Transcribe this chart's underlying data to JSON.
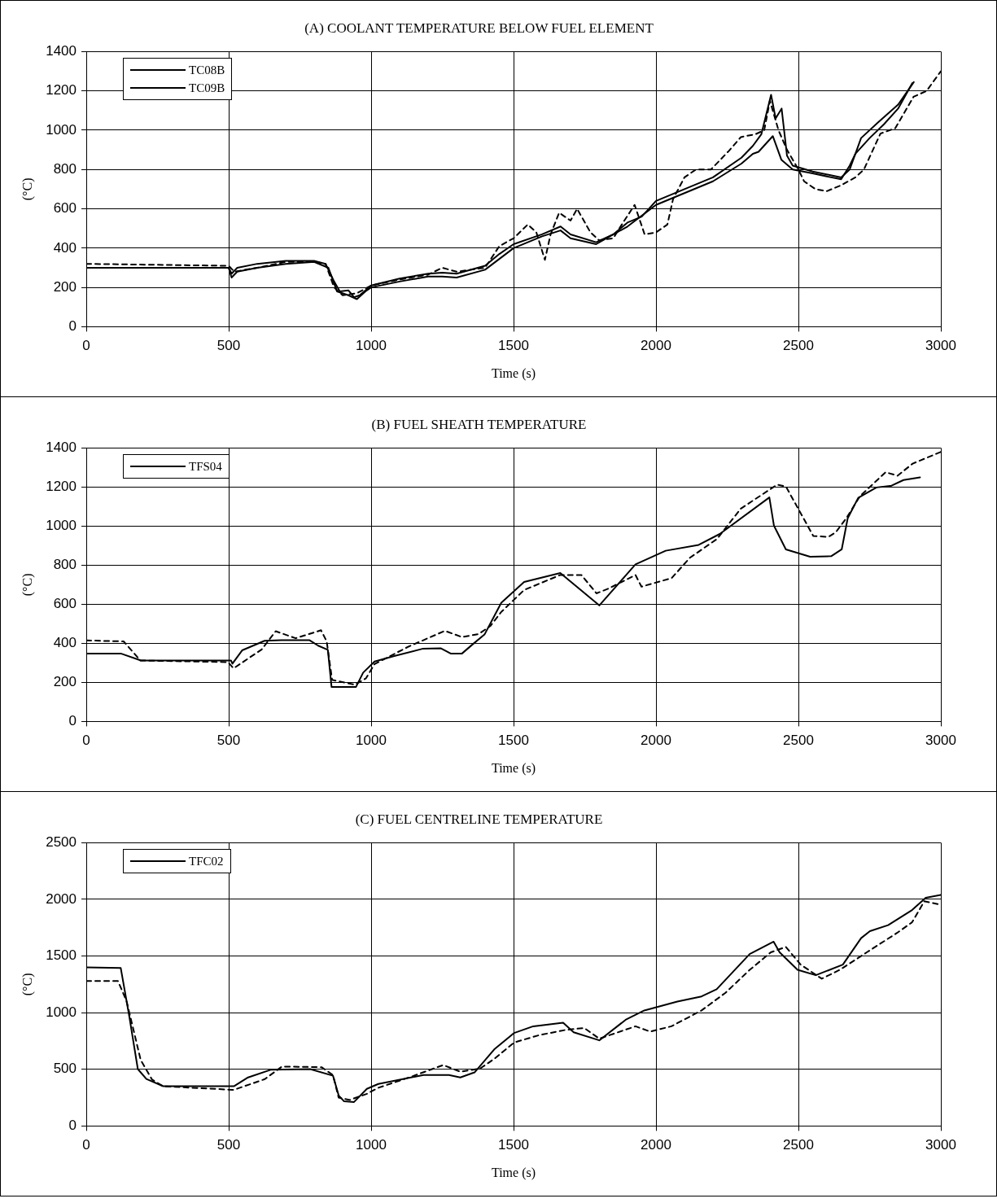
{
  "chart_data": [
    {
      "type": "line",
      "title": "(A) COOLANT TEMPERATURE BELOW FUEL ELEMENT",
      "xlabel": "Time (s)",
      "ylabel": "(°C)",
      "xlim": [
        0,
        3000
      ],
      "xticks": [
        0,
        500,
        1000,
        1500,
        2000,
        2500,
        3000
      ],
      "ylim": [
        0,
        1400
      ],
      "yticks": [
        0,
        200,
        400,
        600,
        800,
        1000,
        1200,
        1400
      ],
      "grid": true,
      "legend": "top left",
      "marker": "none",
      "series": [
        {
          "name": "TC08B",
          "color": "#000000",
          "line_style": "solid",
          "x": [
            0,
            500,
            510,
            530,
            600,
            700,
            800,
            850,
            880,
            920,
            950,
            980,
            1000,
            1100,
            1200,
            1250,
            1300,
            1400,
            1500,
            1600,
            1665,
            1700,
            1790,
            1900,
            2000,
            2100,
            2200,
            2300,
            2340,
            2360,
            2410,
            2440,
            2480,
            2550,
            2650,
            2680,
            2700,
            2750,
            2800,
            2850,
            2900
          ],
          "values": [
            300,
            300,
            250,
            280,
            300,
            320,
            330,
            300,
            180,
            160,
            140,
            180,
            200,
            230,
            255,
            255,
            250,
            290,
            400,
            460,
            490,
            450,
            420,
            510,
            620,
            680,
            740,
            830,
            880,
            890,
            970,
            850,
            800,
            780,
            750,
            820,
            880,
            960,
            1030,
            1110,
            1240
          ]
        },
        {
          "name": "TC09B",
          "color": "#000000",
          "line_style": "solid",
          "x": [
            0,
            500,
            510,
            530,
            600,
            700,
            800,
            840,
            870,
            890,
            920,
            940,
            960,
            1000,
            1100,
            1200,
            1250,
            1300,
            1400,
            1450,
            1500,
            1600,
            1665,
            1700,
            1790,
            1850,
            1900,
            1950,
            2000,
            2100,
            2200,
            2300,
            2340,
            2370,
            2404,
            2420,
            2441,
            2460,
            2480,
            2550,
            2650,
            2680,
            2720,
            2780,
            2850,
            2905
          ],
          "values": [
            300,
            300,
            270,
            300,
            320,
            335,
            335,
            320,
            230,
            180,
            185,
            150,
            160,
            210,
            245,
            270,
            275,
            270,
            310,
            370,
            420,
            470,
            510,
            470,
            430,
            470,
            530,
            560,
            640,
            700,
            760,
            860,
            920,
            980,
            1180,
            1060,
            1110,
            870,
            820,
            790,
            760,
            800,
            960,
            1040,
            1130,
            1245
          ]
        },
        {
          "color": "#000000",
          "line_style": "dashed",
          "x": [
            0,
            500,
            520,
            600,
            700,
            800,
            840,
            870,
            900,
            950,
            1000,
            1100,
            1200,
            1250,
            1300,
            1400,
            1450,
            1500,
            1550,
            1580,
            1610,
            1630,
            1660,
            1700,
            1723,
            1770,
            1800,
            1850,
            1880,
            1925,
            1960,
            2000,
            2040,
            2060,
            2100,
            2140,
            2193,
            2256,
            2298,
            2350,
            2380,
            2400,
            2430,
            2460,
            2500,
            2520,
            2560,
            2600,
            2650,
            2700,
            2730,
            2788,
            2840,
            2904,
            2950,
            3000
          ],
          "values": [
            320,
            310,
            280,
            300,
            330,
            330,
            320,
            200,
            160,
            170,
            210,
            240,
            265,
            300,
            280,
            300,
            410,
            450,
            520,
            480,
            340,
            470,
            580,
            540,
            600,
            480,
            440,
            450,
            520,
            620,
            470,
            480,
            520,
            650,
            760,
            800,
            800,
            895,
            965,
            980,
            1000,
            1150,
            1000,
            900,
            800,
            740,
            700,
            690,
            720,
            760,
            800,
            983,
            1010,
            1170,
            1200,
            1300
          ]
        }
      ]
    },
    {
      "type": "line",
      "title": "(B) FUEL SHEATH TEMPERATURE",
      "xlabel": "Time (s)",
      "ylabel": "(°C)",
      "xlim": [
        0,
        3000
      ],
      "xticks": [
        0,
        500,
        1000,
        1500,
        2000,
        2500,
        3000
      ],
      "ylim": [
        0,
        1400
      ],
      "yticks": [
        0,
        200,
        400,
        600,
        800,
        1000,
        1200,
        1400
      ],
      "grid": true,
      "legend": "top left",
      "marker": "none",
      "series": [
        {
          "name": "TFS04",
          "color": "#000000",
          "line_style": "solid",
          "x": [
            0,
            121,
            192,
            508,
            513,
            547,
            626,
            685,
            784,
            814,
            848,
            861,
            947,
            972,
            1012,
            1081,
            1180,
            1244,
            1279,
            1319,
            1358,
            1398,
            1457,
            1537,
            1664,
            1801,
            1928,
            2034,
            2150,
            2224,
            2398,
            2414,
            2456,
            2541,
            2615,
            2652,
            2673,
            2710,
            2774,
            2827,
            2869,
            2927
          ],
          "values": [
            348,
            348,
            312,
            312,
            296,
            364,
            413,
            416,
            416,
            388,
            367,
            177,
            177,
            250,
            307,
            335,
            372,
            375,
            348,
            348,
            397,
            445,
            608,
            714,
            760,
            594,
            804,
            874,
            904,
            960,
            1147,
            1003,
            881,
            843,
            846,
            881,
            1040,
            1145,
            1198,
            1207,
            1236,
            1250
          ]
        },
        {
          "color": "#000000",
          "line_style": "dashed",
          "x": [
            0,
            131,
            190,
            497,
            517,
            616,
            665,
            735,
            824,
            844,
            863,
            943,
            982,
            1012,
            1131,
            1259,
            1319,
            1378,
            1418,
            1457,
            1537,
            1664,
            1738,
            1791,
            1833,
            1928,
            1949,
            2055,
            2119,
            2214,
            2298,
            2425,
            2456,
            2499,
            2552,
            2605,
            2631,
            2668,
            2716,
            2806,
            2848,
            2901,
            3000
          ],
          "values": [
            415,
            410,
            312,
            304,
            272,
            369,
            462,
            426,
            467,
            410,
            213,
            188,
            221,
            294,
            383,
            464,
            432,
            448,
            488,
            561,
            673,
            750,
            750,
            656,
            680,
            750,
            690,
            734,
            838,
            934,
            1090,
            1212,
            1203,
            1090,
            950,
            945,
            968,
            1040,
            1153,
            1276,
            1258,
            1320,
            1380
          ]
        }
      ]
    },
    {
      "type": "line",
      "title": "(C) FUEL CENTRELINE TEMPERATURE",
      "xlabel": "Time (s)",
      "ylabel": "(°C)",
      "xlim": [
        0,
        3000
      ],
      "xticks": [
        0,
        500,
        1000,
        1500,
        2000,
        2500,
        3000
      ],
      "ylim": [
        0,
        2500
      ],
      "yticks": [
        0,
        500,
        1000,
        1500,
        2000,
        2500
      ],
      "grid": true,
      "legend": "top left",
      "marker": "none",
      "series": [
        {
          "name": "TFC02",
          "color": "#000000",
          "line_style": "solid",
          "x": [
            0,
            121,
            151,
            181,
            211,
            270,
            518,
            568,
            647,
            786,
            866,
            886,
            905,
            940,
            985,
            1025,
            1184,
            1273,
            1313,
            1363,
            1432,
            1502,
            1569,
            1674,
            1711,
            1801,
            1896,
            1959,
            2075,
            2160,
            2213,
            2329,
            2413,
            2434,
            2497,
            2561,
            2656,
            2720,
            2751,
            2815,
            2899,
            2947,
            3000
          ],
          "values": [
            1400,
            1394,
            966,
            502,
            415,
            351,
            351,
            429,
            496,
            502,
            444,
            270,
            218,
            212,
            328,
            371,
            450,
            450,
            429,
            473,
            676,
            821,
            880,
            911,
            827,
            756,
            942,
            1020,
            1098,
            1144,
            1207,
            1518,
            1627,
            1533,
            1378,
            1331,
            1424,
            1658,
            1720,
            1773,
            1906,
            2015,
            2040
          ]
        },
        {
          "color": "#000000",
          "line_style": "dashed",
          "x": [
            0,
            111,
            141,
            166,
            191,
            231,
            270,
            518,
            627,
            687,
            826,
            866,
            886,
            925,
            985,
            1025,
            1144,
            1253,
            1313,
            1383,
            1432,
            1502,
            1590,
            1685,
            1748,
            1801,
            1928,
            1980,
            2054,
            2160,
            2244,
            2329,
            2403,
            2456,
            2508,
            2582,
            2645,
            2740,
            2846,
            2899,
            2942,
            3000
          ],
          "values": [
            1280,
            1280,
            1106,
            845,
            583,
            409,
            351,
            319,
            414,
            525,
            519,
            450,
            250,
            230,
            284,
            337,
            438,
            538,
            479,
            508,
            592,
            737,
            802,
            849,
            865,
            771,
            880,
            833,
            880,
            1020,
            1176,
            1378,
            1533,
            1580,
            1424,
            1300,
            1378,
            1533,
            1704,
            1798,
            1984,
            1953
          ]
        }
      ]
    }
  ]
}
